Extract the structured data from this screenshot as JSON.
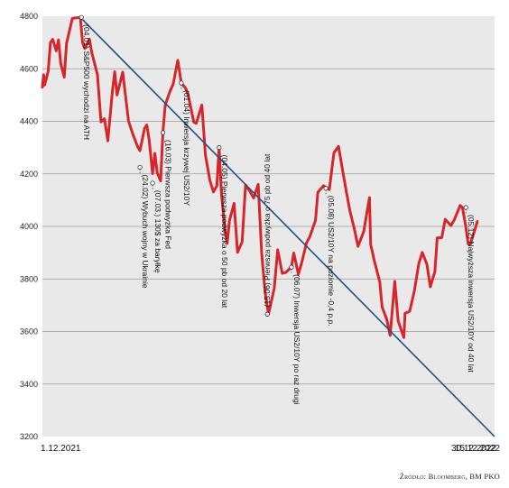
{
  "chart_data": {
    "type": "line",
    "title": "",
    "xlabel": "",
    "ylabel": "",
    "ylim": [
      3200,
      4800
    ],
    "yticks": [
      4800,
      4600,
      4400,
      4200,
      4000,
      3800,
      3600,
      3400,
      3200
    ],
    "ytick_labels": [
      "4800",
      "4600",
      "4400",
      "4200",
      "4000",
      "3800",
      "3600",
      "3400",
      "3200"
    ],
    "xlim": [
      "2021-12-01",
      "2022-12-30"
    ],
    "xtick_labels": [
      {
        "date": "2021-12-01",
        "label": "1.12.2021"
      },
      {
        "date": "2022-12-15",
        "label": "15.12.2022"
      },
      {
        "date": "2022-12-30",
        "label": "30.12.2022"
      }
    ],
    "grid": "horizontal",
    "series": [
      {
        "color": "#d7262b",
        "x": [
          "2021-12-01",
          "2021-12-02",
          "2021-12-03",
          "2021-12-06",
          "2021-12-08",
          "2021-12-10",
          "2021-12-13",
          "2021-12-15",
          "2021-12-17",
          "2021-12-20",
          "2021-12-22",
          "2021-12-27",
          "2021-12-29",
          "2022-01-03",
          "2022-01-05",
          "2022-01-07",
          "2022-01-11",
          "2022-01-13",
          "2022-01-18",
          "2022-01-21",
          "2022-01-24",
          "2022-01-27",
          "2022-01-31",
          "2022-02-02",
          "2022-02-04",
          "2022-02-09",
          "2022-02-14",
          "2022-02-18",
          "2022-02-22",
          "2022-02-24",
          "2022-02-28",
          "2022-03-02",
          "2022-03-04",
          "2022-03-07",
          "2022-03-09",
          "2022-03-11",
          "2022-03-14",
          "2022-03-16",
          "2022-03-18",
          "2022-03-22",
          "2022-03-25",
          "2022-03-29",
          "2022-04-01",
          "2022-04-05",
          "2022-04-07",
          "2022-04-12",
          "2022-04-14",
          "2022-04-19",
          "2022-04-22",
          "2022-04-26",
          "2022-04-29",
          "2022-05-02",
          "2022-05-04",
          "2022-05-06",
          "2022-05-09",
          "2022-05-11",
          "2022-05-13",
          "2022-05-17",
          "2022-05-20",
          "2022-05-24",
          "2022-05-27",
          "2022-05-31",
          "2022-06-03",
          "2022-06-07",
          "2022-06-10",
          "2022-06-13",
          "2022-06-16",
          "2022-06-21",
          "2022-06-24",
          "2022-06-28",
          "2022-07-01",
          "2022-07-06",
          "2022-07-08",
          "2022-07-12",
          "2022-07-15",
          "2022-07-19",
          "2022-07-22",
          "2022-07-27",
          "2022-07-29",
          "2022-08-03",
          "2022-08-08",
          "2022-08-12",
          "2022-08-16",
          "2022-08-19",
          "2022-08-23",
          "2022-08-26",
          "2022-08-30",
          "2022-09-02",
          "2022-09-07",
          "2022-09-12",
          "2022-09-13",
          "2022-09-16",
          "2022-09-21",
          "2022-09-23",
          "2022-09-27",
          "2022-09-30",
          "2022-10-04",
          "2022-10-07",
          "2022-10-12",
          "2022-10-13",
          "2022-10-17",
          "2022-10-21",
          "2022-10-25",
          "2022-10-28",
          "2022-11-01",
          "2022-11-04",
          "2022-11-08",
          "2022-11-10",
          "2022-11-14",
          "2022-11-17",
          "2022-11-22",
          "2022-11-25",
          "2022-11-30",
          "2022-12-02",
          "2022-12-05",
          "2022-12-07",
          "2022-12-09",
          "2022-12-13",
          "2022-12-15"
        ],
        "y": [
          4530,
          4577,
          4538,
          4591,
          4700,
          4712,
          4668,
          4710,
          4620,
          4568,
          4696,
          4791,
          4793,
          4796,
          4700,
          4677,
          4713,
          4662,
          4577,
          4398,
          4410,
          4326,
          4516,
          4589,
          4500,
          4587,
          4401,
          4348,
          4304,
          4288,
          4374,
          4386,
          4329,
          4201,
          4278,
          4204,
          4173,
          4358,
          4463,
          4512,
          4543,
          4632,
          4546,
          4525,
          4500,
          4397,
          4392,
          4462,
          4272,
          4175,
          4131,
          4155,
          4300,
          4123,
          3991,
          3935,
          4023,
          4088,
          3901,
          3941,
          4158,
          4132,
          4108,
          4160,
          3900,
          3750,
          3666,
          3765,
          3911,
          3821,
          3825,
          3845,
          3899,
          3818,
          3863,
          3936,
          3961,
          4023,
          4130,
          4155,
          4140,
          4280,
          4305,
          4228,
          4128,
          4058,
          3986,
          3924,
          3980,
          4110,
          3932,
          3873,
          3789,
          3693,
          3647,
          3585,
          3791,
          3640,
          3577,
          3669,
          3677,
          3752,
          3859,
          3901,
          3856,
          3770,
          3828,
          3956,
          3957,
          4027,
          4003,
          4026,
          4080,
          4072,
          3998,
          3933,
          3934,
          3990,
          4019
        ]
      }
    ],
    "trend_line": {
      "color": "#24507e",
      "x": [
        "2022-01-03",
        "2022-12-30"
      ],
      "y": [
        4796,
        3200
      ]
    },
    "annotations": [
      {
        "date": "2022-01-04",
        "value": 4796,
        "label": "(04.01) S&P500 wychodzi na ATH"
      },
      {
        "date": "2022-02-24",
        "value": 4225,
        "label": "(24.02) Wybuch wojny w Ukrainie"
      },
      {
        "date": "2022-03-07",
        "value": 4165,
        "label": "(07.03.) 130$ za baryłkę"
      },
      {
        "date": "2022-03-16",
        "value": 4357,
        "label": "(16.03) Pierwsza podwyżka Fed"
      },
      {
        "date": "2022-04-01",
        "value": 4546,
        "label": "(01.04) Inwersja krzywej US2/10Y"
      },
      {
        "date": "2022-05-04",
        "value": 4300,
        "label": "(04.05) Pierwsza podwyżka o 50 pb od 20 lat"
      },
      {
        "date": "2022-06-15",
        "value": 3666,
        "label": "(15.06) Pierwsza podwyżka o 75 pb od 40 lat"
      },
      {
        "date": "2022-07-06",
        "value": 3845,
        "label": "(06.07) Inwersja US2/10Y po raz drugi"
      },
      {
        "date": "2022-08-05",
        "value": 4145,
        "label": "(05.08) US2/10Y na poziomie -0,4 p.p."
      },
      {
        "date": "2022-12-05",
        "value": 4072,
        "label": "(05.12) Najwyższa inwersja US2/10Y od 40 lat"
      }
    ]
  },
  "footer": {
    "source": "Źródło: Bloomberg, BM PKO"
  }
}
